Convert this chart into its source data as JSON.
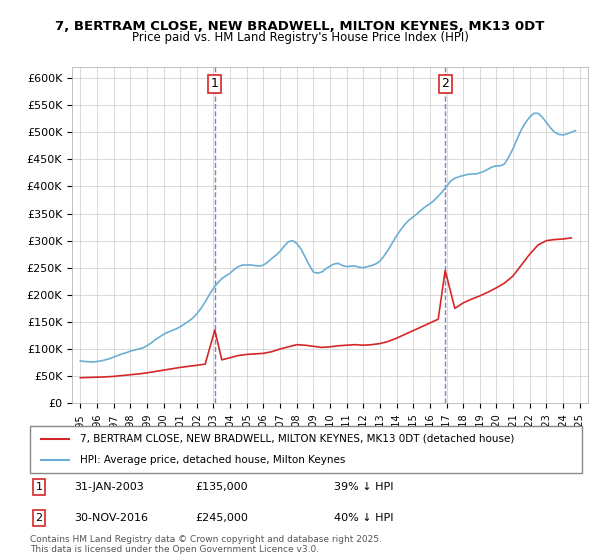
{
  "title": "7, BERTRAM CLOSE, NEW BRADWELL, MILTON KEYNES, MK13 0DT",
  "subtitle": "Price paid vs. HM Land Registry's House Price Index (HPI)",
  "hpi_color": "#6baed6",
  "price_color": "#d62728",
  "vline_color": "#8080c0",
  "ylim": [
    0,
    620000
  ],
  "yticks": [
    0,
    50000,
    100000,
    150000,
    200000,
    250000,
    300000,
    350000,
    400000,
    450000,
    500000,
    550000,
    600000
  ],
  "sale1_date": "31-JAN-2003",
  "sale1_price": 135000,
  "sale1_hpi": "39% ↓ HPI",
  "sale1_x": 2003.08,
  "sale2_date": "30-NOV-2016",
  "sale2_price": 245000,
  "sale2_hpi": "40% ↓ HPI",
  "sale2_x": 2016.92,
  "legend_label1": "7, BERTRAM CLOSE, NEW BRADWELL, MILTON KEYNES, MK13 0DT (detached house)",
  "legend_label2": "HPI: Average price, detached house, Milton Keynes",
  "footer": "Contains HM Land Registry data © Crown copyright and database right 2025.\nThis data is licensed under the Open Government Licence v3.0.",
  "hpi_data_x": [
    1995.0,
    1995.25,
    1995.5,
    1995.75,
    1996.0,
    1996.25,
    1996.5,
    1996.75,
    1997.0,
    1997.25,
    1997.5,
    1997.75,
    1998.0,
    1998.25,
    1998.5,
    1998.75,
    1999.0,
    1999.25,
    1999.5,
    1999.75,
    2000.0,
    2000.25,
    2000.5,
    2000.75,
    2001.0,
    2001.25,
    2001.5,
    2001.75,
    2002.0,
    2002.25,
    2002.5,
    2002.75,
    2003.0,
    2003.25,
    2003.5,
    2003.75,
    2004.0,
    2004.25,
    2004.5,
    2004.75,
    2005.0,
    2005.25,
    2005.5,
    2005.75,
    2006.0,
    2006.25,
    2006.5,
    2006.75,
    2007.0,
    2007.25,
    2007.5,
    2007.75,
    2008.0,
    2008.25,
    2008.5,
    2008.75,
    2009.0,
    2009.25,
    2009.5,
    2009.75,
    2010.0,
    2010.25,
    2010.5,
    2010.75,
    2011.0,
    2011.25,
    2011.5,
    2011.75,
    2012.0,
    2012.25,
    2012.5,
    2012.75,
    2013.0,
    2013.25,
    2013.5,
    2013.75,
    2014.0,
    2014.25,
    2014.5,
    2014.75,
    2015.0,
    2015.25,
    2015.5,
    2015.75,
    2016.0,
    2016.25,
    2016.5,
    2016.75,
    2017.0,
    2017.25,
    2017.5,
    2017.75,
    2018.0,
    2018.25,
    2018.5,
    2018.75,
    2019.0,
    2019.25,
    2019.5,
    2019.75,
    2020.0,
    2020.25,
    2020.5,
    2020.75,
    2021.0,
    2021.25,
    2021.5,
    2021.75,
    2022.0,
    2022.25,
    2022.5,
    2022.75,
    2023.0,
    2023.25,
    2023.5,
    2023.75,
    2024.0,
    2024.25,
    2024.5,
    2024.75
  ],
  "hpi_data_y": [
    78000,
    77000,
    76500,
    76000,
    77000,
    78000,
    80000,
    82000,
    85000,
    88000,
    91000,
    93000,
    96000,
    98000,
    100000,
    102000,
    106000,
    111000,
    117000,
    122000,
    127000,
    131000,
    134000,
    137000,
    141000,
    146000,
    151000,
    157000,
    165000,
    175000,
    187000,
    200000,
    212000,
    222000,
    230000,
    235000,
    240000,
    247000,
    252000,
    255000,
    255000,
    255000,
    254000,
    253000,
    255000,
    260000,
    267000,
    273000,
    280000,
    290000,
    298000,
    300000,
    295000,
    285000,
    270000,
    255000,
    242000,
    240000,
    242000,
    248000,
    253000,
    257000,
    258000,
    254000,
    252000,
    253000,
    253000,
    251000,
    250000,
    252000,
    254000,
    257000,
    262000,
    272000,
    283000,
    296000,
    309000,
    320000,
    330000,
    338000,
    344000,
    350000,
    357000,
    363000,
    368000,
    374000,
    382000,
    390000,
    400000,
    410000,
    415000,
    418000,
    420000,
    422000,
    423000,
    423000,
    425000,
    428000,
    432000,
    436000,
    438000,
    438000,
    442000,
    455000,
    470000,
    488000,
    505000,
    518000,
    528000,
    535000,
    535000,
    528000,
    518000,
    508000,
    500000,
    496000,
    495000,
    497000,
    500000,
    503000
  ],
  "price_data_x": [
    1995.0,
    1995.5,
    1996.0,
    1996.5,
    1997.0,
    1997.5,
    1998.0,
    1998.5,
    1999.0,
    1999.5,
    2000.0,
    2000.5,
    2001.0,
    2001.5,
    2002.0,
    2002.5,
    2003.08,
    2003.5,
    2004.0,
    2004.5,
    2005.0,
    2005.5,
    2006.0,
    2006.5,
    2007.0,
    2007.5,
    2008.0,
    2008.5,
    2009.0,
    2009.5,
    2010.0,
    2010.5,
    2011.0,
    2011.5,
    2012.0,
    2012.5,
    2013.0,
    2013.5,
    2014.0,
    2014.5,
    2015.0,
    2015.5,
    2016.0,
    2016.5,
    2016.92,
    2017.5,
    2018.0,
    2018.5,
    2019.0,
    2019.5,
    2020.0,
    2020.5,
    2021.0,
    2021.5,
    2022.0,
    2022.5,
    2023.0,
    2023.5,
    2024.0,
    2024.5
  ],
  "price_data_y": [
    47000,
    47500,
    48000,
    48500,
    49500,
    51000,
    52500,
    54000,
    56000,
    58500,
    61000,
    63500,
    66000,
    68000,
    70000,
    72000,
    135000,
    80000,
    84000,
    88000,
    90000,
    91000,
    92000,
    95000,
    100000,
    104000,
    108000,
    107000,
    105000,
    103000,
    104000,
    106000,
    107000,
    108000,
    107000,
    108000,
    110000,
    114000,
    120000,
    127000,
    134000,
    141000,
    148000,
    155000,
    245000,
    175000,
    185000,
    192000,
    198000,
    205000,
    213000,
    222000,
    235000,
    255000,
    275000,
    292000,
    300000,
    302000,
    303000,
    305000
  ]
}
